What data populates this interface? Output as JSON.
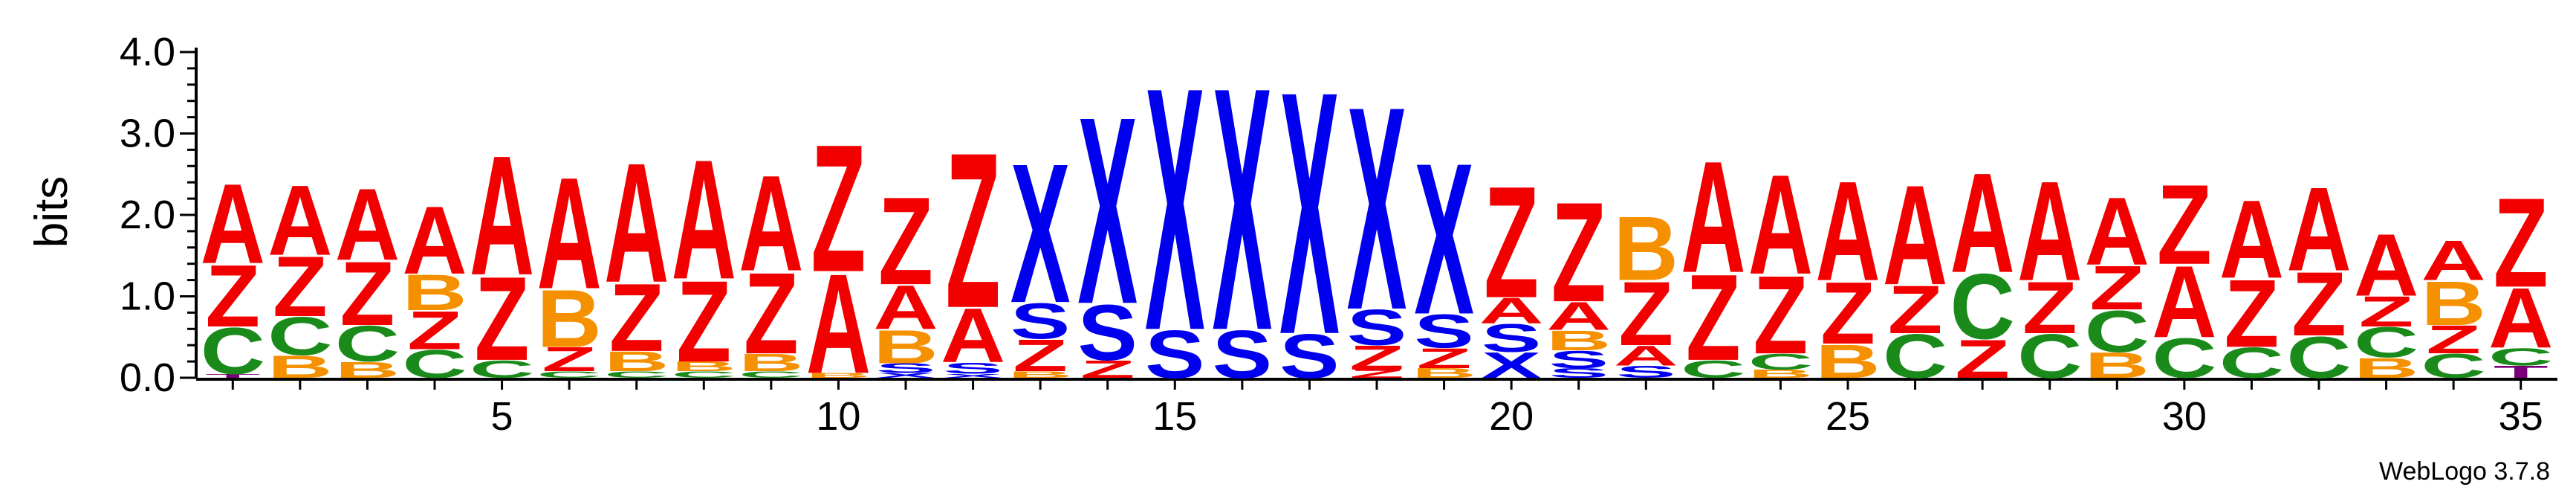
{
  "credit": "WebLogo 3.7.8",
  "colors": {
    "A": "#f20000",
    "Z": "#f20000",
    "X": "#0000ee",
    "S": "#0000ee",
    "B": "#f59100",
    "C": "#1a8a1a",
    "T": "#7a007a"
  },
  "chart_data": {
    "type": "sequence-logo",
    "title": "",
    "xlabel": "",
    "ylabel": "bits",
    "ylim": [
      0,
      4.0
    ],
    "y_ticks": [
      "0.0",
      "1.0",
      "2.0",
      "3.0",
      "4.0"
    ],
    "x_ticks": [
      "5",
      "10",
      "15",
      "20",
      "25",
      "30",
      "35"
    ],
    "positions": [
      {
        "pos": 1,
        "stack": [
          [
            "T",
            0.05
          ],
          [
            "C",
            0.58
          ],
          [
            "Z",
            0.78
          ],
          [
            "A",
            1.0
          ]
        ]
      },
      {
        "pos": 2,
        "stack": [
          [
            "B",
            0.28
          ],
          [
            "C",
            0.48
          ],
          [
            "Z",
            0.75
          ],
          [
            "A",
            0.88
          ]
        ]
      },
      {
        "pos": 3,
        "stack": [
          [
            "B",
            0.2
          ],
          [
            "C",
            0.45
          ],
          [
            "Z",
            0.8
          ],
          [
            "A",
            0.9
          ]
        ]
      },
      {
        "pos": 4,
        "stack": [
          [
            "C",
            0.35
          ],
          [
            "Z",
            0.48
          ],
          [
            "B",
            0.45
          ],
          [
            "A",
            0.85
          ]
        ]
      },
      {
        "pos": 5,
        "stack": [
          [
            "C",
            0.22
          ],
          [
            "Z",
            1.05
          ],
          [
            "A",
            1.5
          ]
        ]
      },
      {
        "pos": 6,
        "stack": [
          [
            "C",
            0.08
          ],
          [
            "Z",
            0.3
          ],
          [
            "B",
            0.72
          ],
          [
            "A",
            1.4
          ]
        ]
      },
      {
        "pos": 7,
        "stack": [
          [
            "C",
            0.08
          ],
          [
            "B",
            0.25
          ],
          [
            "Z",
            0.85
          ],
          [
            "A",
            1.5
          ]
        ]
      },
      {
        "pos": 8,
        "stack": [
          [
            "C",
            0.08
          ],
          [
            "B",
            0.12
          ],
          [
            "Z",
            1.02
          ],
          [
            "A",
            1.5
          ]
        ]
      },
      {
        "pos": 9,
        "stack": [
          [
            "C",
            0.08
          ],
          [
            "B",
            0.22
          ],
          [
            "Z",
            1.02
          ],
          [
            "A",
            1.2
          ]
        ]
      },
      {
        "pos": 10,
        "stack": [
          [
            "B",
            0.06
          ],
          [
            "A",
            1.25
          ],
          [
            "Z",
            1.6
          ]
        ]
      },
      {
        "pos": 11,
        "stack": [
          [
            "X",
            0.06
          ],
          [
            "S",
            0.12
          ],
          [
            "B",
            0.42
          ],
          [
            "A",
            0.55
          ],
          [
            "Z",
            1.1
          ]
        ]
      },
      {
        "pos": 12,
        "stack": [
          [
            "X",
            0.05
          ],
          [
            "S",
            0.14
          ],
          [
            "A",
            0.68
          ],
          [
            "Z",
            1.95
          ]
        ]
      },
      {
        "pos": 13,
        "stack": [
          [
            "B",
            0.08
          ],
          [
            "Z",
            0.4
          ],
          [
            "S",
            0.45
          ],
          [
            "X",
            1.75
          ]
        ]
      },
      {
        "pos": 14,
        "stack": [
          [
            "Z",
            0.22
          ],
          [
            "S",
            0.7
          ],
          [
            "X",
            2.35
          ]
        ]
      },
      {
        "pos": 15,
        "stack": [
          [
            "S",
            0.6
          ],
          [
            "X",
            3.05
          ]
        ]
      },
      {
        "pos": 16,
        "stack": [
          [
            "S",
            0.6
          ],
          [
            "X",
            3.05
          ]
        ]
      },
      {
        "pos": 17,
        "stack": [
          [
            "S",
            0.55
          ],
          [
            "X",
            3.05
          ]
        ]
      },
      {
        "pos": 18,
        "stack": [
          [
            "Z",
            0.1
          ],
          [
            "Z",
            0.3
          ],
          [
            "S",
            0.45
          ],
          [
            "X",
            2.55
          ]
        ]
      },
      {
        "pos": 19,
        "stack": [
          [
            "B",
            0.12
          ],
          [
            "Z",
            0.25
          ],
          [
            "S",
            0.42
          ],
          [
            "X",
            1.9
          ]
        ]
      },
      {
        "pos": 20,
        "stack": [
          [
            "X",
            0.32
          ],
          [
            "S",
            0.35
          ],
          [
            "A",
            0.32
          ],
          [
            "Z",
            1.4
          ]
        ]
      },
      {
        "pos": 21,
        "stack": [
          [
            "S",
            0.12
          ],
          [
            "S",
            0.22
          ],
          [
            "B",
            0.25
          ],
          [
            "A",
            0.35
          ],
          [
            "Z",
            1.25
          ]
        ]
      },
      {
        "pos": 22,
        "stack": [
          [
            "S",
            0.15
          ],
          [
            "A",
            0.25
          ],
          [
            "Z",
            0.8
          ],
          [
            "B",
            0.8
          ]
        ]
      },
      {
        "pos": 23,
        "stack": [
          [
            "C",
            0.22
          ],
          [
            "Z",
            1.08
          ],
          [
            "A",
            1.4
          ]
        ]
      },
      {
        "pos": 24,
        "stack": [
          [
            "B",
            0.1
          ],
          [
            "C",
            0.2
          ],
          [
            "Z",
            0.98
          ],
          [
            "A",
            1.25
          ]
        ]
      },
      {
        "pos": 25,
        "stack": [
          [
            "B",
            0.42
          ],
          [
            "Z",
            0.78
          ],
          [
            "A",
            1.25
          ]
        ]
      },
      {
        "pos": 26,
        "stack": [
          [
            "C",
            0.55
          ],
          [
            "Z",
            0.6
          ],
          [
            "A",
            1.25
          ]
        ]
      },
      {
        "pos": 27,
        "stack": [
          [
            "Z",
            0.48
          ],
          [
            "C",
            0.82
          ],
          [
            "A",
            1.25
          ]
        ]
      },
      {
        "pos": 28,
        "stack": [
          [
            "C",
            0.55
          ],
          [
            "Z",
            0.65
          ],
          [
            "A",
            1.25
          ]
        ]
      },
      {
        "pos": 29,
        "stack": [
          [
            "B",
            0.32
          ],
          [
            "C",
            0.52
          ],
          [
            "Z",
            0.55
          ],
          [
            "A",
            0.85
          ]
        ]
      },
      {
        "pos": 30,
        "stack": [
          [
            "C",
            0.5
          ],
          [
            "A",
            0.9
          ],
          [
            "Z",
            1.0
          ]
        ]
      },
      {
        "pos": 31,
        "stack": [
          [
            "C",
            0.38
          ],
          [
            "Z",
            0.85
          ],
          [
            "A",
            0.98
          ]
        ]
      },
      {
        "pos": 32,
        "stack": [
          [
            "C",
            0.52
          ],
          [
            "Z",
            0.8
          ],
          [
            "A",
            1.05
          ]
        ]
      },
      {
        "pos": 33,
        "stack": [
          [
            "B",
            0.25
          ],
          [
            "C",
            0.38
          ],
          [
            "Z",
            0.38
          ],
          [
            "A",
            0.78
          ]
        ]
      },
      {
        "pos": 34,
        "stack": [
          [
            "C",
            0.3
          ],
          [
            "Z",
            0.35
          ],
          [
            "B",
            0.55
          ],
          [
            "A",
            0.5
          ]
        ]
      },
      {
        "pos": 35,
        "stack": [
          [
            "T",
            0.15
          ],
          [
            "C",
            0.22
          ],
          [
            "A",
            0.75
          ],
          [
            "Z",
            1.12
          ]
        ]
      }
    ]
  }
}
